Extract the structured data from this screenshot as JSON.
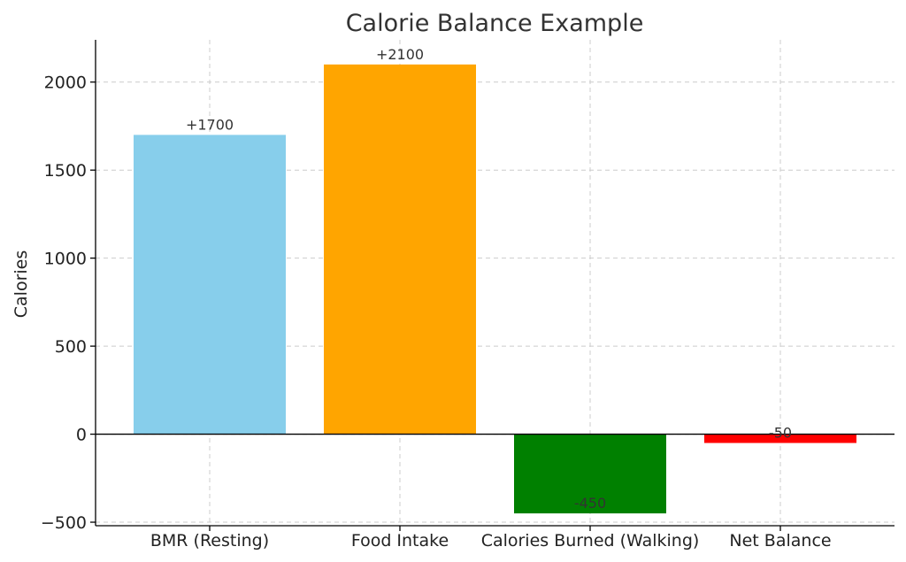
{
  "chart_data": {
    "type": "bar",
    "title": "Calorie Balance Example",
    "xlabel": "",
    "ylabel": "Calories",
    "categories": [
      "BMR (Resting)",
      "Food Intake",
      "Calories Burned (Walking)",
      "Net Balance"
    ],
    "values": [
      1700,
      2100,
      -450,
      -50
    ],
    "data_labels": [
      "+1700",
      "+2100",
      "-450",
      "-50"
    ],
    "colors": [
      "#87ceeb",
      "#ffa500",
      "#008000",
      "#ff0000"
    ],
    "ylim": [
      -520,
      2240
    ],
    "yticks": [
      -500,
      0,
      500,
      1000,
      1500,
      2000
    ],
    "ytick_labels": [
      "−500",
      "0",
      "500",
      "1000",
      "1500",
      "2000"
    ],
    "grid": true,
    "zero_line": true
  }
}
